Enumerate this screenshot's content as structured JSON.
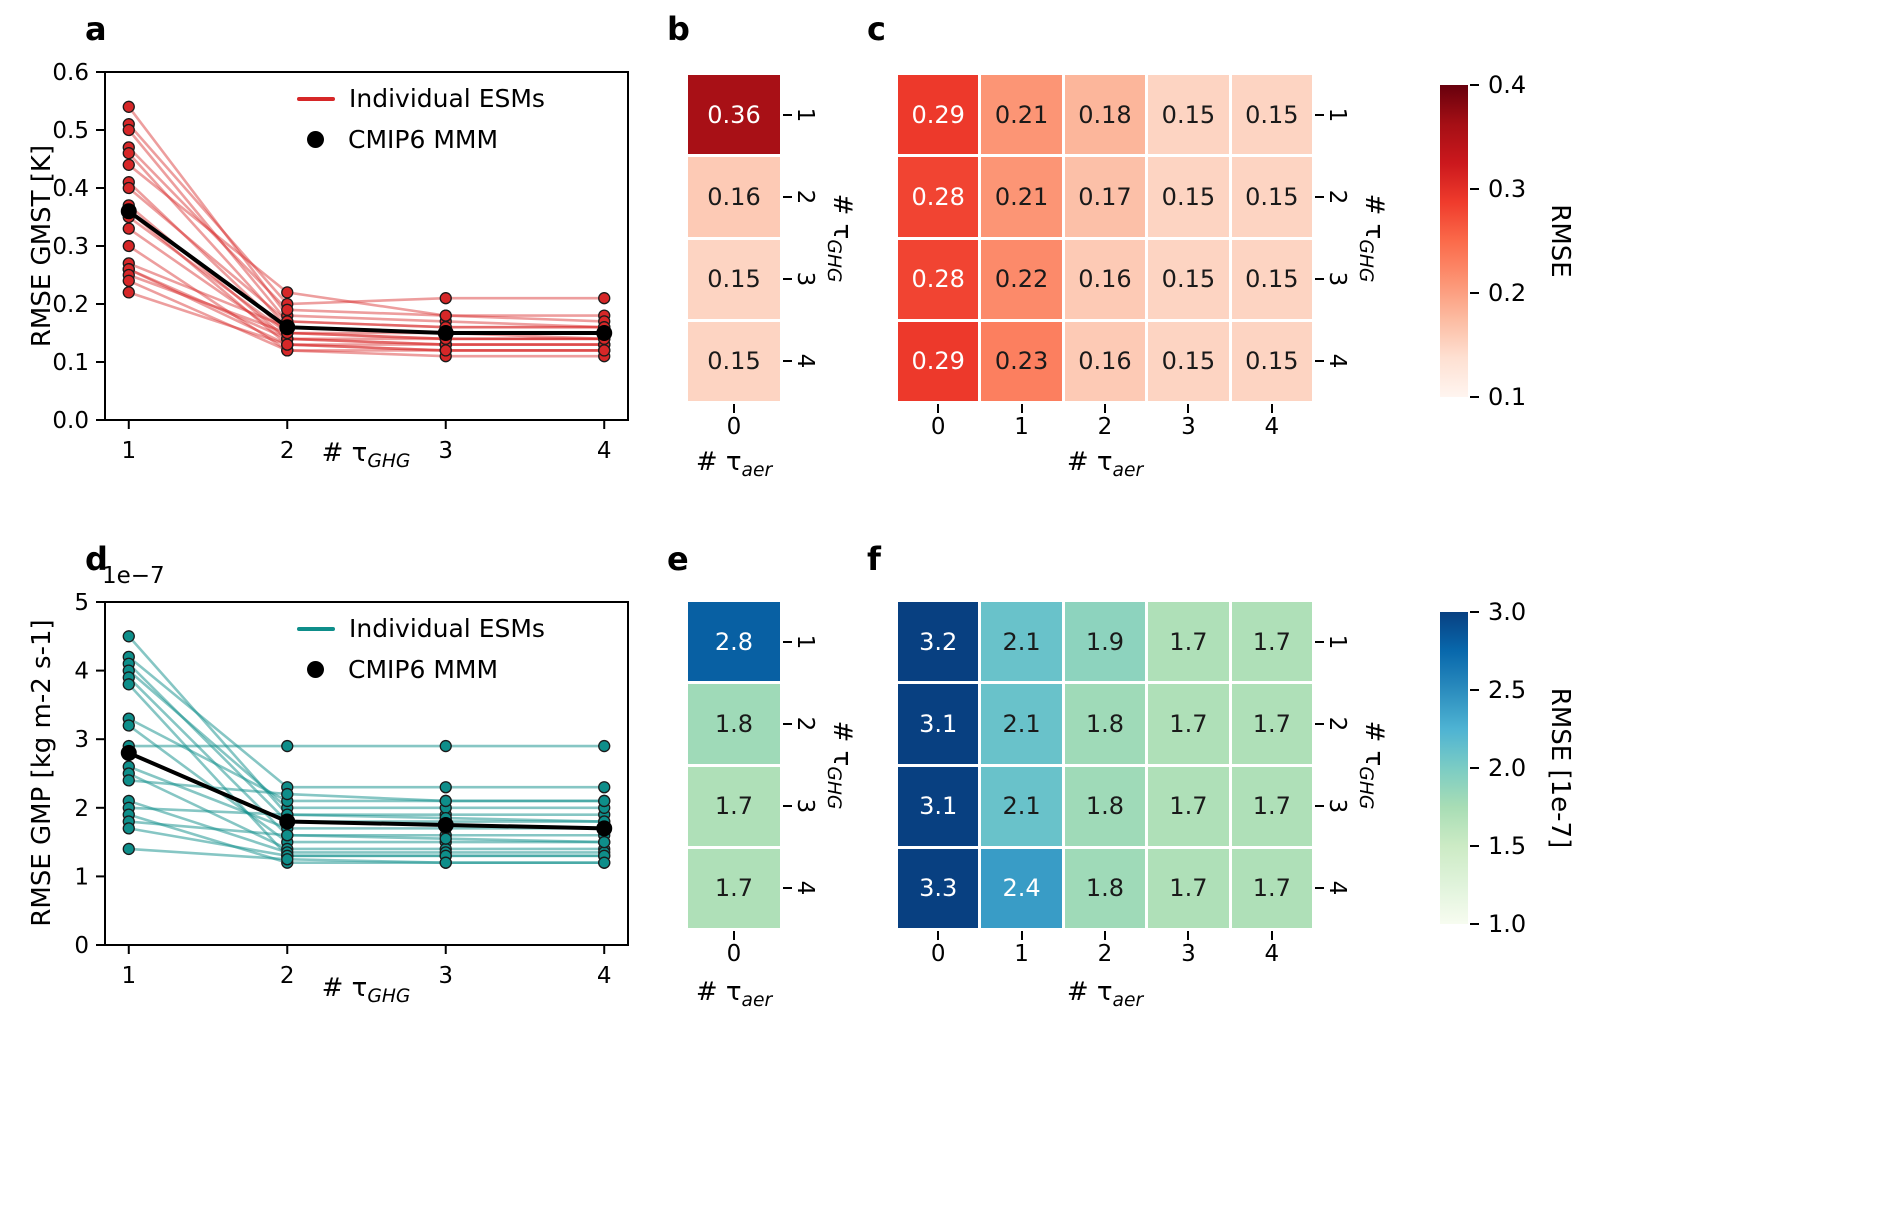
{
  "figure": {
    "background": "#ffffff",
    "panel_labels": {
      "a": "a",
      "b": "b",
      "c": "c",
      "d": "d",
      "e": "e",
      "f": "f"
    }
  },
  "labels": {
    "tau_ghg": {
      "prefix": "# τ",
      "sub": "GHG"
    },
    "tau_aer": {
      "prefix": "# τ",
      "sub": "aer"
    },
    "legend_line": "Individual ESMs",
    "legend_dot": "CMIP6 MMM",
    "ylabel_a": "RMSE GMST [K]",
    "ylabel_d": "RMSE GMP [kg m-2 s-1]",
    "offset_d": "1e−7",
    "cbar_c_label": "RMSE",
    "cbar_f_label": "RMSE [1e-7]"
  },
  "chart_data": [
    {
      "id": "a",
      "type": "line",
      "title": "",
      "xlabel": "# τ_GHG",
      "ylabel": "RMSE GMST [K]",
      "x": [
        1,
        2,
        3,
        4
      ],
      "xlim": [
        0.85,
        4.15
      ],
      "ylim": [
        0,
        0.6
      ],
      "yticks": [
        0,
        0.1,
        0.2,
        0.3,
        0.4,
        0.5,
        0.6
      ],
      "ytick_labels": [
        "0.0",
        "0.1",
        "0.2",
        "0.3",
        "0.4",
        "0.5",
        "0.6"
      ],
      "xtick_labels": [
        "1",
        "2",
        "3",
        "4"
      ],
      "line_color": "#d62728",
      "line_alpha": 0.45,
      "mmm_color": "#000000",
      "legend": [
        "Individual ESMs",
        "CMIP6 MMM"
      ],
      "individual": [
        [
          0.54,
          0.18,
          0.17,
          0.16
        ],
        [
          0.51,
          0.2,
          0.21,
          0.21
        ],
        [
          0.5,
          0.17,
          0.16,
          0.16
        ],
        [
          0.47,
          0.19,
          0.18,
          0.18
        ],
        [
          0.46,
          0.16,
          0.15,
          0.15
        ],
        [
          0.44,
          0.22,
          0.18,
          0.17
        ],
        [
          0.41,
          0.15,
          0.14,
          0.14
        ],
        [
          0.4,
          0.17,
          0.16,
          0.16
        ],
        [
          0.37,
          0.14,
          0.13,
          0.13
        ],
        [
          0.36,
          0.16,
          0.15,
          0.15
        ],
        [
          0.36,
          0.13,
          0.12,
          0.12
        ],
        [
          0.35,
          0.15,
          0.15,
          0.14
        ],
        [
          0.33,
          0.14,
          0.13,
          0.13
        ],
        [
          0.3,
          0.12,
          0.12,
          0.12
        ],
        [
          0.27,
          0.16,
          0.15,
          0.15
        ],
        [
          0.26,
          0.13,
          0.13,
          0.13
        ],
        [
          0.26,
          0.14,
          0.14,
          0.14
        ],
        [
          0.25,
          0.15,
          0.14,
          0.14
        ],
        [
          0.24,
          0.12,
          0.11,
          0.11
        ],
        [
          0.22,
          0.13,
          0.12,
          0.12
        ]
      ],
      "mmm": [
        0.36,
        0.16,
        0.15,
        0.15
      ]
    },
    {
      "id": "b",
      "type": "heatmap",
      "xlabel": "# τ_aer",
      "ylabel": "# τ_GHG",
      "x_categories": [
        "0"
      ],
      "y_categories": [
        "1",
        "2",
        "3",
        "4"
      ],
      "values": [
        [
          0.36
        ],
        [
          0.16
        ],
        [
          0.15
        ],
        [
          0.15
        ]
      ],
      "decimals": 2,
      "vmin": 0.1,
      "vmax": 0.4,
      "colormap": "Reds"
    },
    {
      "id": "c",
      "type": "heatmap",
      "xlabel": "# τ_aer",
      "ylabel": "# τ_GHG",
      "x_categories": [
        "0",
        "1",
        "2",
        "3",
        "4"
      ],
      "y_categories": [
        "1",
        "2",
        "3",
        "4"
      ],
      "values": [
        [
          0.29,
          0.21,
          0.18,
          0.15,
          0.15
        ],
        [
          0.28,
          0.21,
          0.17,
          0.15,
          0.15
        ],
        [
          0.28,
          0.22,
          0.16,
          0.15,
          0.15
        ],
        [
          0.29,
          0.23,
          0.16,
          0.15,
          0.15
        ]
      ],
      "decimals": 2,
      "vmin": 0.1,
      "vmax": 0.4,
      "colormap": "Reds",
      "colorbar": {
        "label": "RMSE",
        "tick_values": [
          0.4,
          0.3,
          0.2,
          0.1
        ],
        "tick_labels": [
          "0.4",
          "0.3",
          "0.2",
          "0.1"
        ]
      }
    },
    {
      "id": "d",
      "type": "line",
      "title": "",
      "xlabel": "# τ_GHG",
      "ylabel": "RMSE GMP [kg m-2 s-1]",
      "y_scale": "1e-7",
      "x": [
        1,
        2,
        3,
        4
      ],
      "xlim": [
        0.85,
        4.15
      ],
      "ylim": [
        0,
        5
      ],
      "yticks": [
        0,
        1,
        2,
        3,
        4,
        5
      ],
      "ytick_labels": [
        "0",
        "1",
        "2",
        "3",
        "4",
        "5"
      ],
      "xtick_labels": [
        "1",
        "2",
        "3",
        "4"
      ],
      "line_color": "#0e8e8a",
      "line_alpha": 0.5,
      "mmm_color": "#000000",
      "legend": [
        "Individual ESMs",
        "CMIP6 MMM"
      ],
      "individual": [
        [
          4.5,
          1.9,
          1.9,
          1.9
        ],
        [
          4.2,
          2.3,
          2.3,
          2.3
        ],
        [
          4.1,
          1.8,
          1.8,
          1.8
        ],
        [
          4.0,
          2.0,
          2.0,
          2.0
        ],
        [
          3.9,
          1.6,
          1.6,
          1.6
        ],
        [
          3.8,
          1.3,
          1.3,
          1.3
        ],
        [
          3.3,
          2.1,
          2.1,
          2.1
        ],
        [
          3.2,
          1.5,
          1.5,
          1.5
        ],
        [
          2.9,
          2.9,
          2.9,
          2.9
        ],
        [
          2.6,
          1.7,
          1.7,
          1.7
        ],
        [
          2.5,
          1.4,
          1.4,
          1.4
        ],
        [
          2.4,
          2.2,
          2.1,
          2.1
        ],
        [
          2.1,
          1.35,
          1.35,
          1.35
        ],
        [
          2.0,
          1.9,
          1.85,
          1.8
        ],
        [
          1.9,
          1.2,
          1.2,
          1.2
        ],
        [
          1.8,
          1.6,
          1.55,
          1.5
        ],
        [
          1.7,
          1.3,
          1.3,
          1.3
        ],
        [
          1.4,
          1.25,
          1.2,
          1.2
        ]
      ],
      "mmm": [
        2.8,
        1.8,
        1.75,
        1.7
      ]
    },
    {
      "id": "e",
      "type": "heatmap",
      "xlabel": "# τ_aer",
      "ylabel": "# τ_GHG",
      "x_categories": [
        "0"
      ],
      "y_categories": [
        "1",
        "2",
        "3",
        "4"
      ],
      "values": [
        [
          2.8
        ],
        [
          1.8
        ],
        [
          1.7
        ],
        [
          1.7
        ]
      ],
      "decimals": 1,
      "vmin": 1.0,
      "vmax": 3.0,
      "colormap": "GnBu"
    },
    {
      "id": "f",
      "type": "heatmap",
      "xlabel": "# τ_aer",
      "ylabel": "# τ_GHG",
      "x_categories": [
        "0",
        "1",
        "2",
        "3",
        "4"
      ],
      "y_categories": [
        "1",
        "2",
        "3",
        "4"
      ],
      "values": [
        [
          3.2,
          2.1,
          1.9,
          1.7,
          1.7
        ],
        [
          3.1,
          2.1,
          1.8,
          1.7,
          1.7
        ],
        [
          3.1,
          2.1,
          1.8,
          1.7,
          1.7
        ],
        [
          3.3,
          2.4,
          1.8,
          1.7,
          1.7
        ]
      ],
      "decimals": 1,
      "vmin": 1.0,
      "vmax": 3.0,
      "colormap": "GnBu",
      "colorbar": {
        "label": "RMSE [1e-7]",
        "tick_values": [
          3.0,
          2.5,
          2.0,
          1.5,
          1.0
        ],
        "tick_labels": [
          "3.0",
          "2.5",
          "2.0",
          "1.5",
          "1.0"
        ]
      }
    }
  ]
}
